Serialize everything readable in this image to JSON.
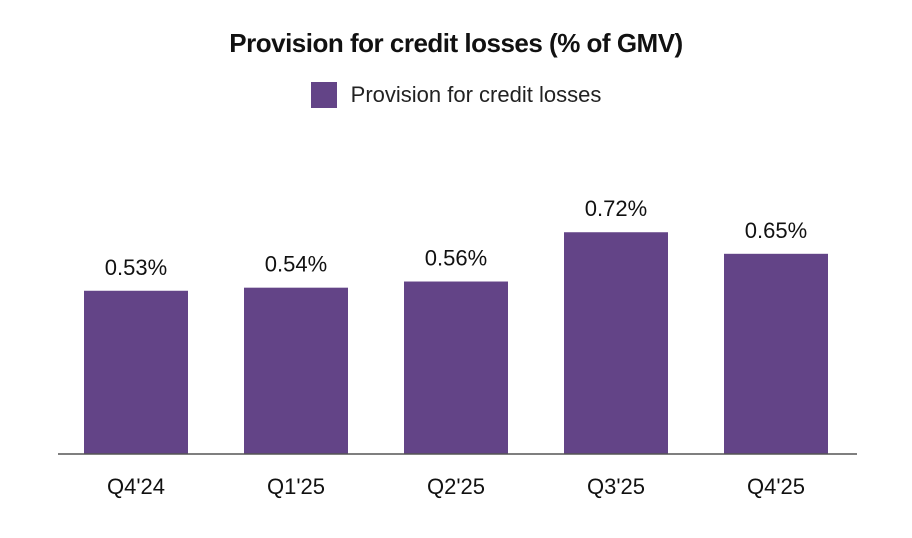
{
  "chart_data": {
    "type": "bar",
    "title": "Provision for credit losses (% of GMV)",
    "legend": [
      "Provision for credit losses"
    ],
    "categories": [
      "Q4'24",
      "Q1'25",
      "Q2'25",
      "Q3'25",
      "Q4'25"
    ],
    "values": [
      0.53,
      0.54,
      0.56,
      0.72,
      0.65
    ],
    "data_labels": [
      "0.53%",
      "0.54%",
      "0.56%",
      "0.72%",
      "0.65%"
    ],
    "xlabel": "",
    "ylabel": "",
    "ylim": [
      0,
      0.8
    ],
    "grid": false,
    "legend_position": "top-center",
    "bar_color": "#634487"
  }
}
